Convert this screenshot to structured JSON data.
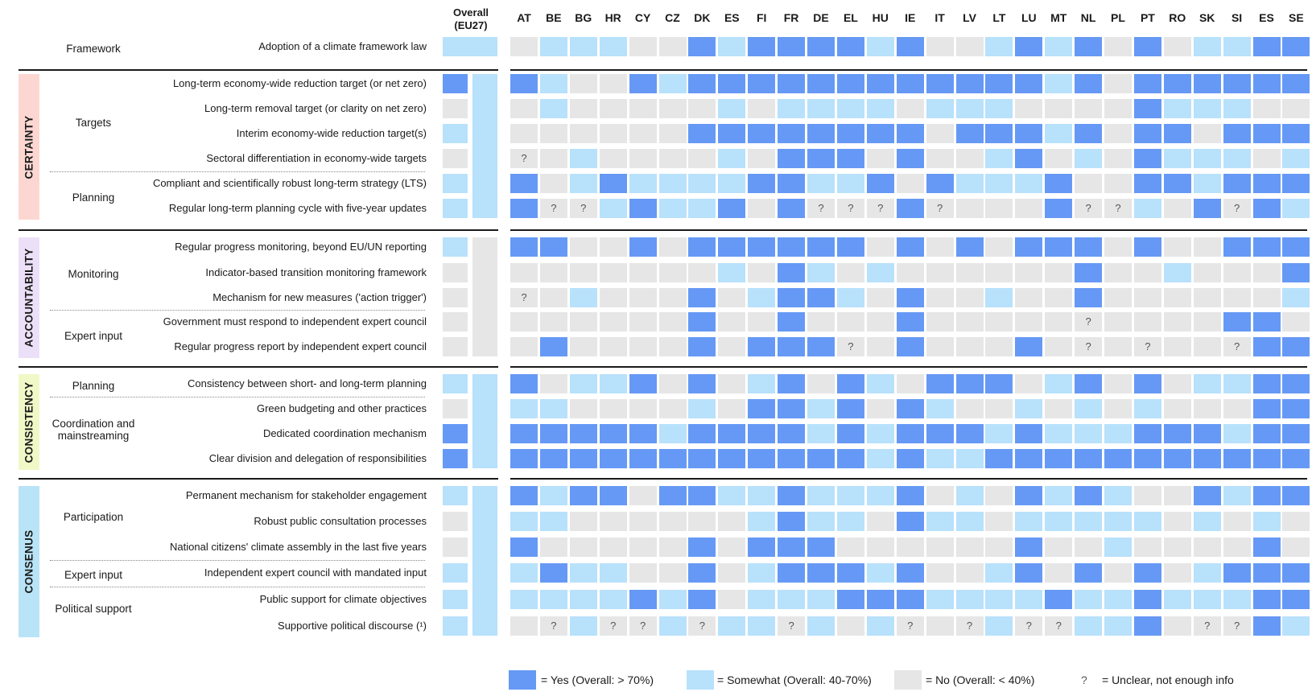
{
  "colors": {
    "yes": "#6699f5",
    "somewhat": "#b8e1fc",
    "no": "#e6e6e6",
    "unclear": "#e6e6e6",
    "qmark": "#555555"
  },
  "header": {
    "overall_label_line1": "Overall",
    "overall_label_line2": "(EU27)",
    "countries": [
      "AT",
      "BE",
      "BG",
      "HR",
      "CY",
      "CZ",
      "DK",
      "ES",
      "FI",
      "FR",
      "DE",
      "EL",
      "HU",
      "IE",
      "IT",
      "LV",
      "LT",
      "LU",
      "MT",
      "NL",
      "PL",
      "PT",
      "RO",
      "SK",
      "SI",
      "ES",
      "SE"
    ]
  },
  "sections": [
    {
      "name": "",
      "color": ""
    },
    {
      "name": "CERTAINTY",
      "color": "#fcd7d2"
    },
    {
      "name": "ACCOUNTABILITY",
      "color": "#ece0f8"
    },
    {
      "name": "CONSISTENCY",
      "color": "#f1f8c7"
    },
    {
      "name": "CONSENUS",
      "color": "#b9e4f7"
    }
  ],
  "groups": [
    {
      "label": "Framework"
    },
    {
      "label": "Targets"
    },
    {
      "label": "Planning"
    },
    {
      "label": "Monitoring"
    },
    {
      "label": "Expert input"
    },
    {
      "label": "Planning"
    },
    {
      "label": "Coordination and mainstreaming"
    },
    {
      "label": "Participation"
    },
    {
      "label": "Expert input"
    },
    {
      "label": "Political support"
    }
  ],
  "chart_data": {
    "type": "heatmap",
    "legend_code": "Y = Yes, S = Somewhat, N = No, U = Unclear (?)",
    "rows": [
      {
        "label": "Adoption of a climate framework law",
        "overall": "S",
        "cells": "NSSSNNYSYYYYSYNNSYSYNYNSSYY"
      },
      {
        "label": "Long-term economy-wide reduction target (or net zero)",
        "overall": "Y",
        "cells": "YSNNYSYYYYYYYYYYYYSYNYYYYYY"
      },
      {
        "label": "Long-term removal target (or clarity on net zero)",
        "overall": "N",
        "cells": "NSNNNNNSNSSSSNSSSNNNNYSSSNN"
      },
      {
        "label": "Interim economy-wide reduction target(s)",
        "overall": "S",
        "cells": "NNNNNNYYYYYYYYNYYYSYNYYNYYY"
      },
      {
        "label": "Sectoral differentiation in economy-wide targets",
        "overall": "N",
        "cells": "UNSNNNNSNYYYNYNNSYNSNYSSSNS"
      },
      {
        "label": "Compliant and scientifically robust long-term strategy (LTS)",
        "overall": "S",
        "cells": "YNSYSSSSYYSSYNYSSSYNNYYSYYY"
      },
      {
        "label": "Regular long-term planning cycle with five-year updates",
        "overall": "S",
        "cells": "YUUSYSSYNYUUUYUNNNYUUSNYUYS"
      },
      {
        "label": "Regular progress monitoring, beyond EU/UN reporting",
        "overall": "S",
        "cells": "YYNNYNYYYYYYNYNYNYYYNYNNYYY"
      },
      {
        "label": "Indicator-based transition monitoring framework",
        "overall": "N",
        "cells": "NNNNNNNSNYSNSNNNNNNYNNSNNNY"
      },
      {
        "label": "Mechanism for new measures ('action trigger')",
        "overall": "N",
        "cells": "UNSNNNYNSYYSNYNNSNNYNNNNNNS"
      },
      {
        "label": "Government must respond to independent expert council",
        "overall": "N",
        "cells": "NNNNNNYNNYNNNYNNNNNUNNNNYYN"
      },
      {
        "label": "Regular progress report by independent expert council",
        "overall": "N",
        "cells": "NYNNNNYNYYYUNYNNNYNUNUNNUYY"
      },
      {
        "label": "Consistency between short- and long-term planning",
        "overall": "S",
        "cells": "YNSSYNYNSYNYSNYYYNSYNYNSSYY"
      },
      {
        "label": "Green budgeting and other practices",
        "overall": "N",
        "cells": "SSNNNNSNYYSYNYSNNSNSNSNNNYY"
      },
      {
        "label": "Dedicated coordination mechanism",
        "overall": "Y",
        "cells": "YYYYYSYYYYSYSYYYSYSSSYYYSYY"
      },
      {
        "label": "Clear division and delegation of responsibilities",
        "overall": "Y",
        "cells": "YYYYYYYYYYYYSYSSYYYYYYYYYYY"
      },
      {
        "label": "Permanent mechanism for stakeholder engagement",
        "overall": "S",
        "cells": "YSYYNYYSSYSSSYNSNYSYSNNYSYY"
      },
      {
        "label": "Robust public consultation processes",
        "overall": "N",
        "cells": "SSNNNNNNSYSSNYSSNSSSSSNSNSN"
      },
      {
        "label": "National citizens' climate assembly in the last five years",
        "overall": "N",
        "cells": "YNNNNNYNYYYNNNNNNYNNSNNNNYN"
      },
      {
        "label": "Independent expert council with mandated input",
        "overall": "S",
        "cells": "SYSSNNYNSYYYSYNNSYNYNYNSYYY"
      },
      {
        "label": "Public support for climate objectives",
        "overall": "S",
        "cells": "SSSSYSYNSSSYYYSSSSYSSYSSSYY"
      },
      {
        "label": "Supportive political discourse (¹)",
        "overall": "S",
        "cells": "NUSUUSUSSUSNSUNUSUUSSYNUUYS"
      }
    ],
    "overall_bands": [
      {
        "rows": "0",
        "value": "S"
      },
      {
        "rows": "1-6",
        "value": "S"
      },
      {
        "rows": "7-11",
        "value": "N"
      },
      {
        "rows": "12-15",
        "value": "S"
      },
      {
        "rows": "16-21",
        "value": "S"
      }
    ]
  },
  "legend": {
    "yes": "= Yes (Overall: > 70%)",
    "somewhat": "= Somewhat (Overall: 40-70%)",
    "no": "= No (Overall: < 40%)",
    "unclear_symbol": "?",
    "unclear": "= Unclear, not enough info"
  }
}
